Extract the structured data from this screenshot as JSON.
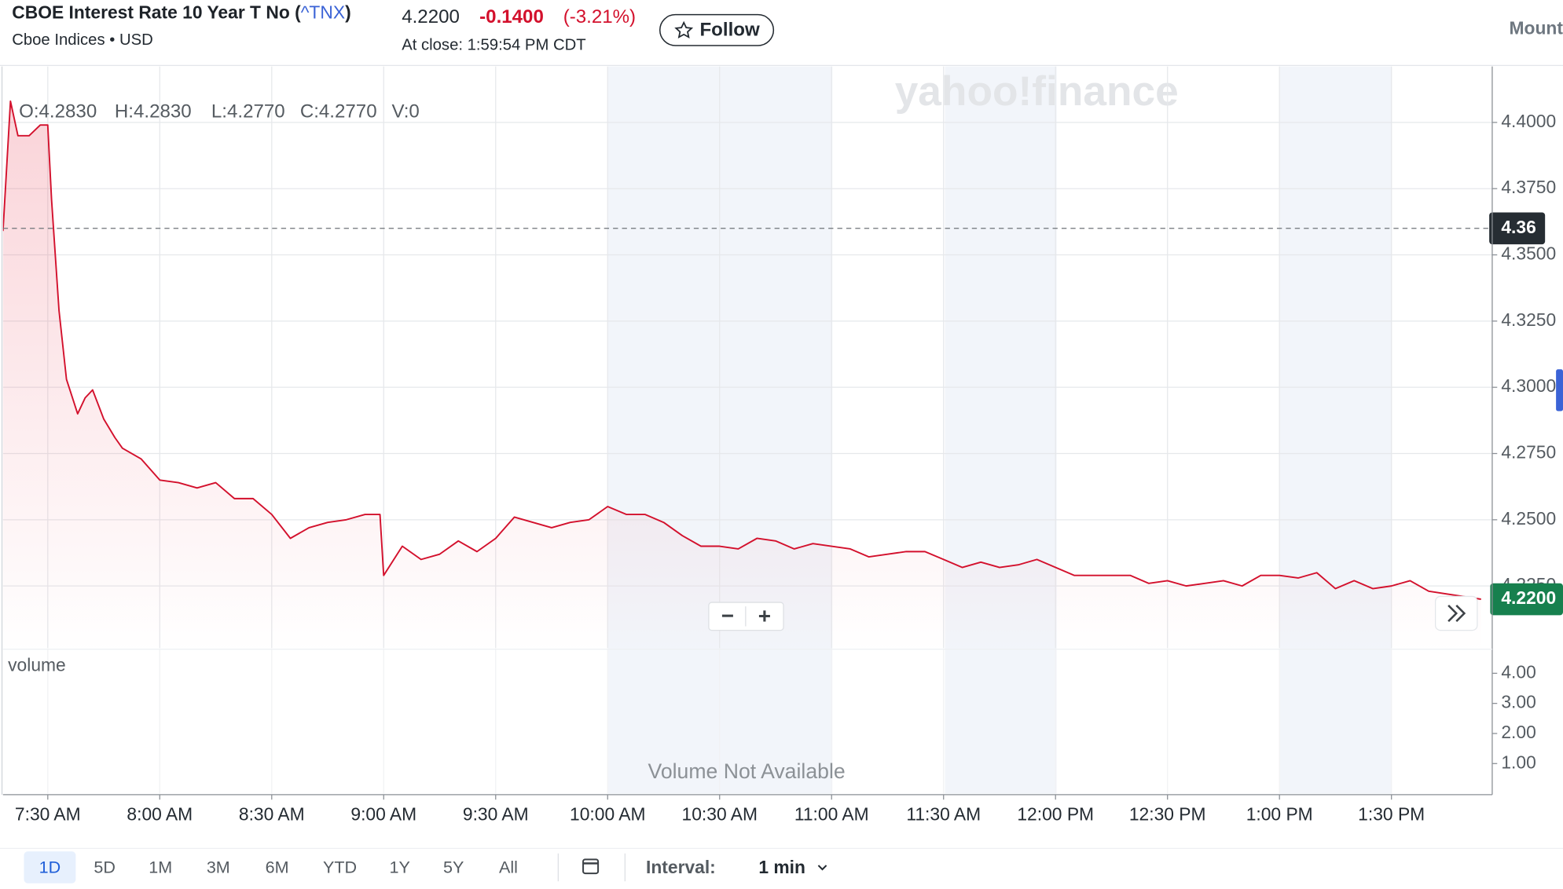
{
  "header": {
    "title_prefix": "CBOE Interest Rate 10 Year T No (",
    "symbol": "^TNX",
    "title_suffix": ")",
    "subtitle": "Cboe Indices • USD",
    "price": "4.2200",
    "change": "-0.1400",
    "change_percent": "(-3.21%)",
    "close_time": "At close: 1:59:54 PM CDT",
    "follow": "Follow",
    "right_label": "Mount"
  },
  "chart_data": {
    "type": "line",
    "watermark": "yahoo!finance",
    "legend_ohlc": [
      "O:4.2830",
      "H:4.2830",
      "L:4.2770",
      "C:4.2770",
      "V:0"
    ],
    "x": [
      "7:18 AM",
      "7:20 AM",
      "7:22 AM",
      "7:25 AM",
      "7:28 AM",
      "7:30 AM",
      "7:31 AM",
      "7:33 AM",
      "7:35 AM",
      "7:38 AM",
      "7:40 AM",
      "7:42 AM",
      "7:45 AM",
      "7:48 AM",
      "7:50 AM",
      "7:55 AM",
      "8:00 AM",
      "8:05 AM",
      "8:10 AM",
      "8:15 AM",
      "8:20 AM",
      "8:25 AM",
      "8:30 AM",
      "8:35 AM",
      "8:40 AM",
      "8:45 AM",
      "8:50 AM",
      "8:55 AM",
      "8:59 AM",
      "9:00 AM",
      "9:05 AM",
      "9:10 AM",
      "9:15 AM",
      "9:20 AM",
      "9:25 AM",
      "9:30 AM",
      "9:35 AM",
      "9:40 AM",
      "9:45 AM",
      "9:50 AM",
      "9:55 AM",
      "10:00 AM",
      "10:05 AM",
      "10:10 AM",
      "10:15 AM",
      "10:20 AM",
      "10:25 AM",
      "10:30 AM",
      "10:35 AM",
      "10:40 AM",
      "10:45 AM",
      "10:50 AM",
      "10:55 AM",
      "11:00 AM",
      "11:05 AM",
      "11:10 AM",
      "11:15 AM",
      "11:20 AM",
      "11:25 AM",
      "11:30 AM",
      "11:35 AM",
      "11:40 AM",
      "11:45 AM",
      "11:50 AM",
      "11:55 AM",
      "12:00 PM",
      "12:05 PM",
      "12:10 PM",
      "12:15 PM",
      "12:20 PM",
      "12:25 PM",
      "12:30 PM",
      "12:35 PM",
      "12:40 PM",
      "12:45 PM",
      "12:50 PM",
      "12:55 PM",
      "1:00 PM",
      "1:05 PM",
      "1:10 PM",
      "1:15 PM",
      "1:20 PM",
      "1:25 PM",
      "1:30 PM",
      "1:35 PM",
      "1:40 PM",
      "1:54 PM"
    ],
    "values": [
      4.359,
      4.408,
      4.395,
      4.395,
      4.399,
      4.399,
      4.371,
      4.329,
      4.303,
      4.29,
      4.296,
      4.299,
      4.288,
      4.281,
      4.277,
      4.273,
      4.265,
      4.264,
      4.262,
      4.264,
      4.258,
      4.258,
      4.252,
      4.243,
      4.247,
      4.249,
      4.25,
      4.252,
      4.252,
      4.229,
      4.24,
      4.235,
      4.237,
      4.242,
      4.238,
      4.243,
      4.251,
      4.249,
      4.247,
      4.249,
      4.25,
      4.255,
      4.252,
      4.252,
      4.249,
      4.244,
      4.24,
      4.24,
      4.239,
      4.243,
      4.242,
      4.239,
      4.241,
      4.24,
      4.239,
      4.236,
      4.237,
      4.238,
      4.238,
      4.235,
      4.232,
      4.234,
      4.232,
      4.233,
      4.235,
      4.232,
      4.229,
      4.229,
      4.229,
      4.229,
      4.226,
      4.227,
      4.225,
      4.226,
      4.227,
      4.225,
      4.229,
      4.229,
      4.228,
      4.23,
      4.224,
      4.227,
      4.224,
      4.225,
      4.227,
      4.223,
      4.22
    ],
    "color": "#d3102c",
    "xlim": [
      "7:18 AM",
      "1:57 PM"
    ],
    "xticks": [
      "7:30 AM",
      "8:00 AM",
      "8:30 AM",
      "9:00 AM",
      "9:30 AM",
      "10:00 AM",
      "10:30 AM",
      "11:00 AM",
      "11:30 AM",
      "12:00 PM",
      "12:30 PM",
      "1:00 PM",
      "1:30 PM"
    ],
    "ylim": [
      4.2,
      4.42
    ],
    "yticks": [
      {
        "value": 4.225,
        "label": "4.2250"
      },
      {
        "value": 4.25,
        "label": "4.2500"
      },
      {
        "value": 4.275,
        "label": "4.2750"
      },
      {
        "value": 4.3,
        "label": "4.3000"
      },
      {
        "value": 4.325,
        "label": "4.3250"
      },
      {
        "value": 4.35,
        "label": "4.3500"
      },
      {
        "value": 4.375,
        "label": "4.3750"
      },
      {
        "value": 4.4,
        "label": "4.4000"
      }
    ],
    "reference_line": 4.36,
    "last_price": {
      "value": 4.22,
      "label": "4.2200"
    },
    "grid": true,
    "zoom_buttons": [
      "−",
      "+"
    ]
  },
  "volume": {
    "label": "volume",
    "message": "Volume Not Available",
    "ylim": [
      0,
      4.8
    ],
    "yticks": [
      {
        "value": 4,
        "label": "4.00"
      },
      {
        "value": 3,
        "label": "3.00"
      },
      {
        "value": 2,
        "label": "2.00"
      },
      {
        "value": 1,
        "label": "1.00"
      }
    ]
  },
  "toolbar": {
    "ranges": [
      "1D",
      "5D",
      "1M",
      "3M",
      "6M",
      "YTD",
      "1Y",
      "5Y",
      "All"
    ],
    "selected": 0,
    "interval_label": "Interval:",
    "interval": "1 min"
  }
}
